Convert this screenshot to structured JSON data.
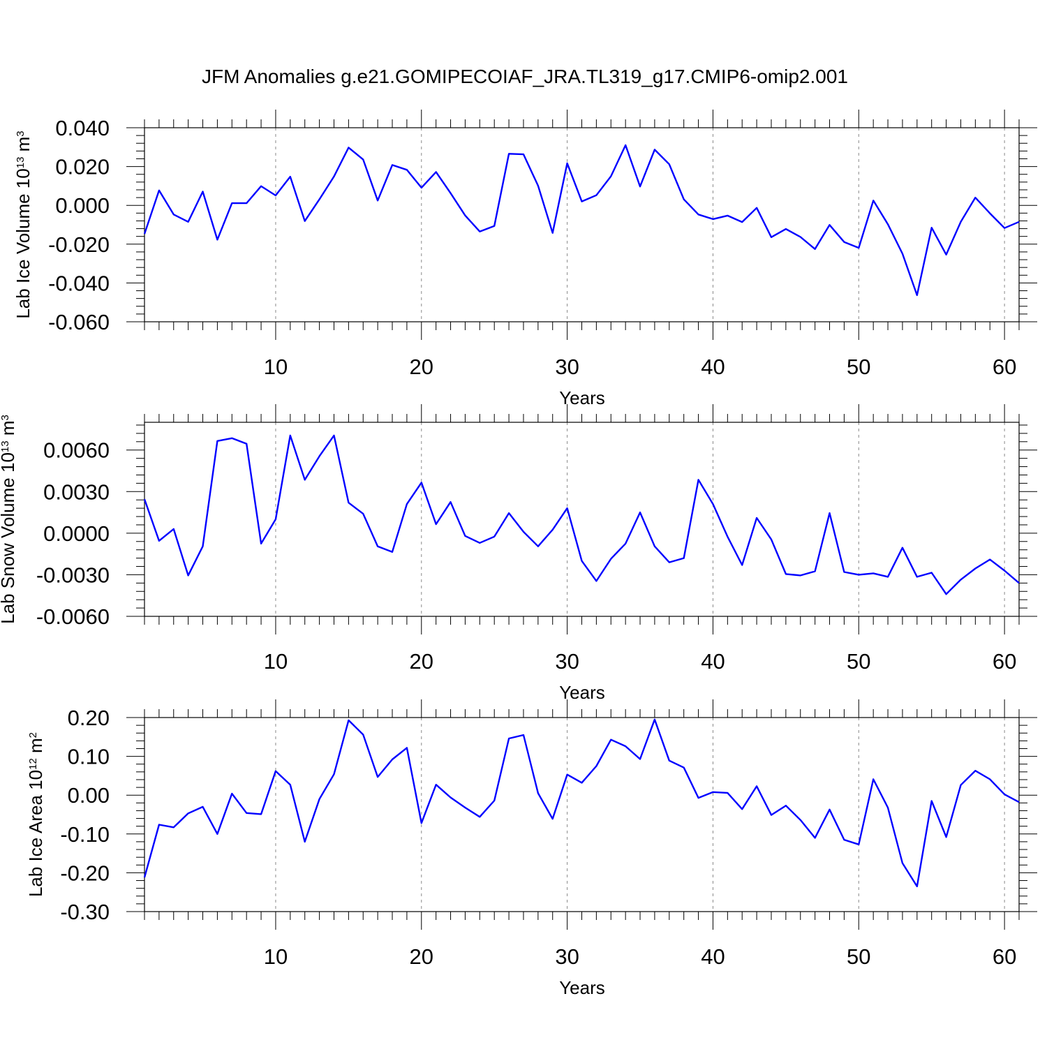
{
  "figure": {
    "title": "JFM Anomalies g.e21.GOMIPECOIAF_JRA.TL319_g17.CMIP6-omip2.001"
  },
  "colors": {
    "line": "#0000ff",
    "axis": "#000000",
    "grid": "#888888"
  },
  "chart_data": [
    {
      "type": "line",
      "ylabel": {
        "main": "Lab Ice Volume 10",
        "sup": "13",
        "unit": " m",
        "unit_sup": "3"
      },
      "xlabel": "Years",
      "xlim": [
        1,
        61
      ],
      "ylim": [
        -0.06,
        0.04
      ],
      "x_ticks": [
        10,
        20,
        30,
        40,
        50,
        60
      ],
      "x_tick_labels": [
        "10",
        "20",
        "30",
        "40",
        "50",
        "60"
      ],
      "y_ticks": [
        -0.06,
        -0.04,
        -0.02,
        0.0,
        0.02,
        0.04
      ],
      "y_tick_labels": [
        "-0.060",
        "-0.040",
        "-0.020",
        "0.000",
        "0.020",
        "0.040"
      ],
      "vertical_grid": [
        10,
        20,
        30,
        40,
        50,
        60
      ],
      "series": [
        {
          "x_start": 1,
          "values": [
            -0.0147,
            0.0077,
            -0.0047,
            -0.0085,
            0.0071,
            -0.0177,
            0.0011,
            0.0011,
            0.0099,
            0.0051,
            0.0148,
            -0.0081,
            0.0031,
            0.0149,
            0.0298,
            0.0236,
            0.0025,
            0.0208,
            0.0183,
            0.0091,
            0.0172,
            0.0063,
            -0.0052,
            -0.0135,
            -0.0106,
            0.0266,
            0.0263,
            0.0101,
            -0.0142,
            0.0217,
            0.002,
            0.0052,
            0.015,
            0.031,
            0.0097,
            0.0287,
            0.0212,
            0.0031,
            -0.0047,
            -0.0071,
            -0.0053,
            -0.0086,
            -0.0013,
            -0.0164,
            -0.0122,
            -0.0163,
            -0.0225,
            -0.0101,
            -0.0189,
            -0.0219,
            0.0025,
            -0.0097,
            -0.0249,
            -0.0463,
            -0.0115,
            -0.0254,
            -0.0085,
            0.004,
            -0.0041,
            -0.0117,
            -0.0085
          ]
        }
      ]
    },
    {
      "type": "line",
      "ylabel": {
        "main": "Lab Snow Volume 10",
        "sup": "13",
        "unit": " m",
        "unit_sup": "3"
      },
      "xlabel": "Years",
      "xlim": [
        1,
        61
      ],
      "ylim": [
        -0.006,
        0.008
      ],
      "x_ticks": [
        10,
        20,
        30,
        40,
        50,
        60
      ],
      "x_tick_labels": [
        "10",
        "20",
        "30",
        "40",
        "50",
        "60"
      ],
      "y_ticks": [
        -0.006,
        -0.003,
        0.0,
        0.003,
        0.006
      ],
      "y_tick_labels": [
        "-0.0060",
        "-0.0030",
        "0.0000",
        "0.0030",
        "0.0060"
      ],
      "vertical_grid": [
        10,
        20,
        30,
        40,
        50,
        60
      ],
      "series": [
        {
          "x_start": 1,
          "values": [
            0.00245,
            -0.00055,
            0.0003,
            -0.00305,
            -0.00095,
            0.00665,
            0.00685,
            0.00645,
            -0.00075,
            0.001,
            0.00705,
            0.00385,
            0.00555,
            0.00705,
            0.0022,
            0.0014,
            -0.00095,
            -0.00135,
            0.0021,
            0.00365,
            0.00065,
            0.00225,
            -0.0002,
            -0.0007,
            -0.00025,
            0.00145,
            0.0001,
            -0.00095,
            0.00025,
            0.0018,
            -0.002,
            -0.00345,
            -0.00185,
            -0.00075,
            0.0015,
            -0.00095,
            -0.0021,
            -0.0018,
            0.00385,
            0.0021,
            -0.00025,
            -0.0023,
            0.0011,
            -0.00045,
            -0.00295,
            -0.00305,
            -0.00275,
            0.00145,
            -0.0028,
            -0.003,
            -0.0029,
            -0.00315,
            -0.00105,
            -0.00315,
            -0.00285,
            -0.0044,
            -0.00335,
            -0.00255,
            -0.0019,
            -0.0027,
            -0.0036
          ]
        }
      ]
    },
    {
      "type": "line",
      "ylabel": {
        "main": "Lab Ice Area 10",
        "sup": "12",
        "unit": " m",
        "unit_sup": "2"
      },
      "xlabel": "Years",
      "xlim": [
        1,
        61
      ],
      "ylim": [
        -0.3,
        0.2
      ],
      "x_ticks": [
        10,
        20,
        30,
        40,
        50,
        60
      ],
      "x_tick_labels": [
        "10",
        "20",
        "30",
        "40",
        "50",
        "60"
      ],
      "y_ticks": [
        -0.3,
        -0.2,
        -0.1,
        0.0,
        0.1,
        0.2
      ],
      "y_tick_labels": [
        "-0.30",
        "-0.20",
        "-0.10",
        "0.00",
        "0.10",
        "0.20"
      ],
      "vertical_grid": [
        10,
        20,
        30,
        40,
        50,
        60
      ],
      "series": [
        {
          "x_start": 1,
          "values": [
            -0.212,
            -0.076,
            -0.083,
            -0.047,
            -0.03,
            -0.1,
            0.004,
            -0.046,
            -0.049,
            0.062,
            0.027,
            -0.12,
            -0.01,
            0.054,
            0.193,
            0.156,
            0.047,
            0.092,
            0.122,
            -0.072,
            0.027,
            -0.006,
            -0.032,
            -0.056,
            -0.014,
            0.146,
            0.155,
            0.005,
            -0.061,
            0.053,
            0.032,
            0.075,
            0.143,
            0.126,
            0.093,
            0.195,
            0.089,
            0.071,
            -0.007,
            0.008,
            0.006,
            -0.036,
            0.023,
            -0.051,
            -0.027,
            -0.064,
            -0.11,
            -0.037,
            -0.115,
            -0.127,
            0.041,
            -0.032,
            -0.175,
            -0.235,
            -0.015,
            -0.108,
            0.026,
            0.063,
            0.041,
            0.002,
            -0.018
          ]
        }
      ]
    }
  ]
}
